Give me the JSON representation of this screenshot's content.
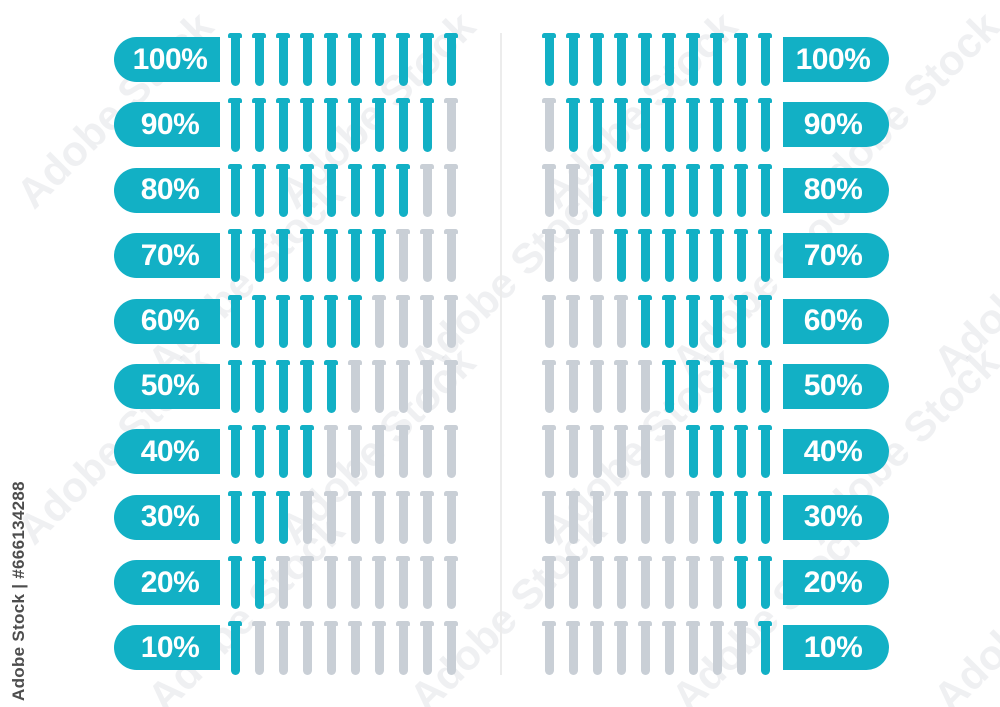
{
  "watermark": {
    "diagonal_text": "Adobe Stock",
    "corner_text": "Adobe Stock | #666134288"
  },
  "colors": {
    "accent_teal": "#12b0c5",
    "empty_gray": "#c9cfd6",
    "divider_gray": "#ececec",
    "label_text": "#ffffff"
  },
  "chart_data": [
    {
      "type": "pictogram-bar",
      "icon": "test-tube",
      "units_per_row": 10,
      "fill_direction": "left-to-right",
      "label_position": "left",
      "categories": [
        "100%",
        "90%",
        "80%",
        "70%",
        "60%",
        "50%",
        "40%",
        "30%",
        "20%",
        "10%"
      ],
      "values": [
        10,
        9,
        8,
        7,
        6,
        5,
        4,
        3,
        2,
        1
      ],
      "value_meaning": "number of filled test tubes out of 10",
      "title": "",
      "legend": "none",
      "grid": "off"
    },
    {
      "type": "pictogram-bar",
      "icon": "test-tube",
      "units_per_row": 10,
      "fill_direction": "right-to-left",
      "label_position": "right",
      "categories": [
        "100%",
        "90%",
        "80%",
        "70%",
        "60%",
        "50%",
        "40%",
        "30%",
        "20%",
        "10%"
      ],
      "values": [
        10,
        9,
        8,
        7,
        6,
        5,
        4,
        3,
        2,
        1
      ],
      "value_meaning": "number of filled test tubes out of 10",
      "title": "",
      "legend": "none",
      "grid": "off"
    }
  ]
}
